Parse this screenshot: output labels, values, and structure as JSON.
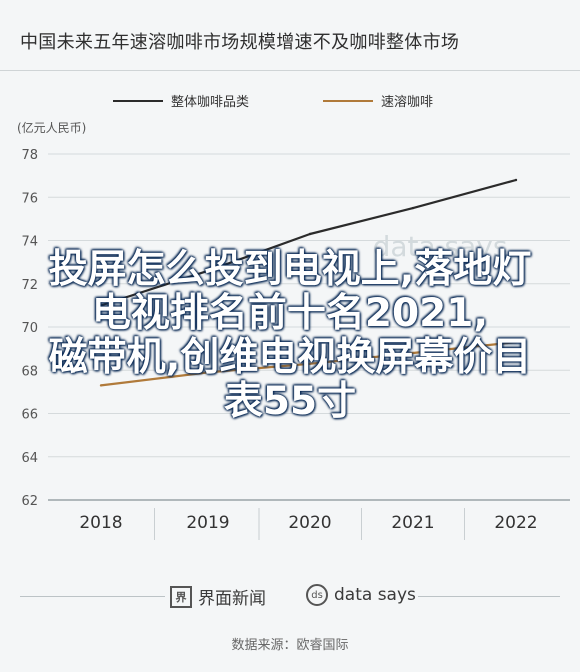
{
  "header": {
    "title": "中国未来五年速溶咖啡市场规模增速不及咖啡整体市场"
  },
  "overlay_text": {
    "line1": "投屏怎么投到电视上,落地灯",
    "line2": "电视排名前十名2021,",
    "line3": "磁带机,创维电视换屏幕价目",
    "line4": "表55寸"
  },
  "footer": {
    "brand_jiemian": "界面新闻",
    "brand_datasays": "data says",
    "source": "数据来源：欧睿国际"
  },
  "colors": {
    "series1": "#2b2b2b",
    "series2": "#b07a3a",
    "axis_text": "#555555",
    "grid": "#d5dadc"
  },
  "chart_data": {
    "type": "line",
    "title": "中国未来五年速溶咖啡市场规模增速不及咖啡整体市场",
    "ylabel": "(亿元人民币)",
    "xlabel": "",
    "x": [
      "2018",
      "2019",
      "2020",
      "2021",
      "2022"
    ],
    "ylim": [
      62,
      78
    ],
    "yticks": [
      62,
      64,
      66,
      68,
      70,
      72,
      74,
      76,
      78
    ],
    "grid": true,
    "legend_position": "top",
    "series": [
      {
        "name": "整体咖啡品类",
        "values": [
          71.0,
          72.6,
          74.3,
          75.5,
          76.8
        ]
      },
      {
        "name": "速溶咖啡",
        "values": [
          67.3,
          67.9,
          68.3,
          68.8,
          69.3
        ]
      }
    ],
    "watermark": "data says"
  }
}
